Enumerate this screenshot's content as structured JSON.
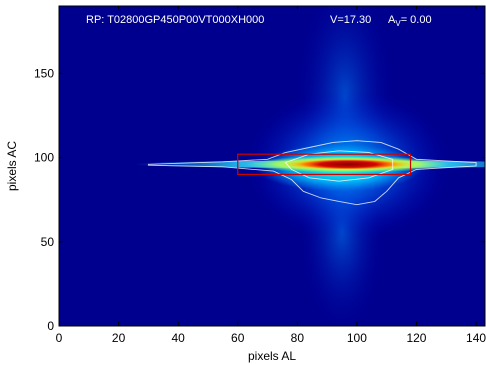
{
  "chart_data": {
    "type": "heatmap",
    "header": {
      "rp_label": "RP: T02800GP450P00VT000XH000",
      "v_label": "V=17.30",
      "av_prefix": "A",
      "av_sub": "V",
      "av_value": "= 0.00"
    },
    "xlabel": "pixels AL",
    "ylabel": "pixels AC",
    "xlim": [
      0,
      143
    ],
    "ylim": [
      0,
      190
    ],
    "xticks": [
      0,
      20,
      40,
      60,
      80,
      100,
      120,
      140
    ],
    "yticks": [
      0,
      50,
      100,
      150
    ],
    "grid": false,
    "colormap": "jet",
    "colors": {
      "background": "#00008f",
      "contour": "#ffffff",
      "window_box": "#d00000"
    },
    "source": {
      "center_al": 97,
      "center_ac": 96,
      "core_width_al": 16,
      "core_height_ac": 3
    },
    "window_box": {
      "al_range": [
        60,
        118
      ],
      "ac_range": [
        90,
        102
      ]
    }
  }
}
